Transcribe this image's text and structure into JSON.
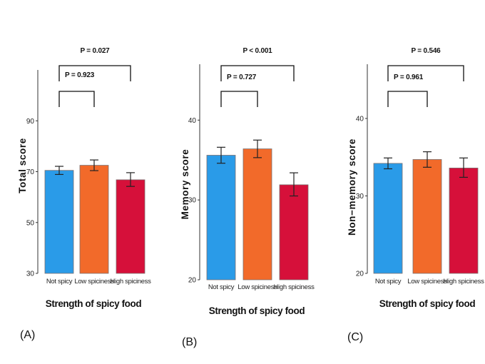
{
  "colors": {
    "not_spicy": "#2a9be8",
    "low_spiciness": "#f26a2a",
    "high_spiciness": "#d6103a",
    "bar_edge": "#7a6f6f",
    "axis": "#333333"
  },
  "chart_data": [
    {
      "type": "bar",
      "panel_label": "(A)",
      "ylabel": "Total score",
      "xlabel": "Strength of spicy food",
      "categories": [
        "Not spicy",
        "Low spiciness",
        "High spiciness"
      ],
      "values": [
        70.5,
        72.5,
        66.8
      ],
      "error": [
        [
          68.9,
          72.1
        ],
        [
          70.4,
          74.6
        ],
        [
          64.2,
          69.6
        ]
      ],
      "ylim": [
        30,
        110
      ],
      "yticks": [
        "30",
        "50",
        "70",
        "90"
      ],
      "ytick_values": [
        30,
        50,
        70,
        90
      ],
      "comparisons": [
        {
          "label": "P = 0.923",
          "from": 0,
          "to": 1
        },
        {
          "label": "P = 0.027",
          "from": 0,
          "to": 2
        }
      ]
    },
    {
      "type": "bar",
      "panel_label": "(B)",
      "ylabel": "Memory score",
      "xlabel": "Strength of spicy food",
      "categories": [
        "Not spicy",
        "Low spiciness",
        "High spiciness"
      ],
      "values": [
        35.6,
        36.4,
        31.9
      ],
      "error": [
        [
          34.6,
          36.6
        ],
        [
          35.3,
          37.5
        ],
        [
          30.5,
          33.4
        ]
      ],
      "ylim": [
        20,
        47
      ],
      "yticks": [
        "20",
        "30",
        "40"
      ],
      "ytick_values": [
        20,
        30,
        40
      ],
      "comparisons": [
        {
          "label": "P = 0.727",
          "from": 0,
          "to": 1
        },
        {
          "label": "P < 0.001",
          "from": 0,
          "to": 2
        }
      ]
    },
    {
      "type": "bar",
      "panel_label": "(C)",
      "ylabel": "Non−memory score",
      "xlabel": "Strength of spicy food",
      "categories": [
        "Not spicy",
        "Low spiciness",
        "High spiciness"
      ],
      "values": [
        34.2,
        34.7,
        33.6
      ],
      "error": [
        [
          33.5,
          34.9
        ],
        [
          33.7,
          35.7
        ],
        [
          32.4,
          34.9
        ]
      ],
      "ylim": [
        20,
        47
      ],
      "yticks": [
        "20",
        "30",
        "40"
      ],
      "ytick_values": [
        20,
        30,
        40
      ],
      "comparisons": [
        {
          "label": "P = 0.961",
          "from": 0,
          "to": 1
        },
        {
          "label": "P = 0.546",
          "from": 0,
          "to": 2
        }
      ]
    }
  ]
}
